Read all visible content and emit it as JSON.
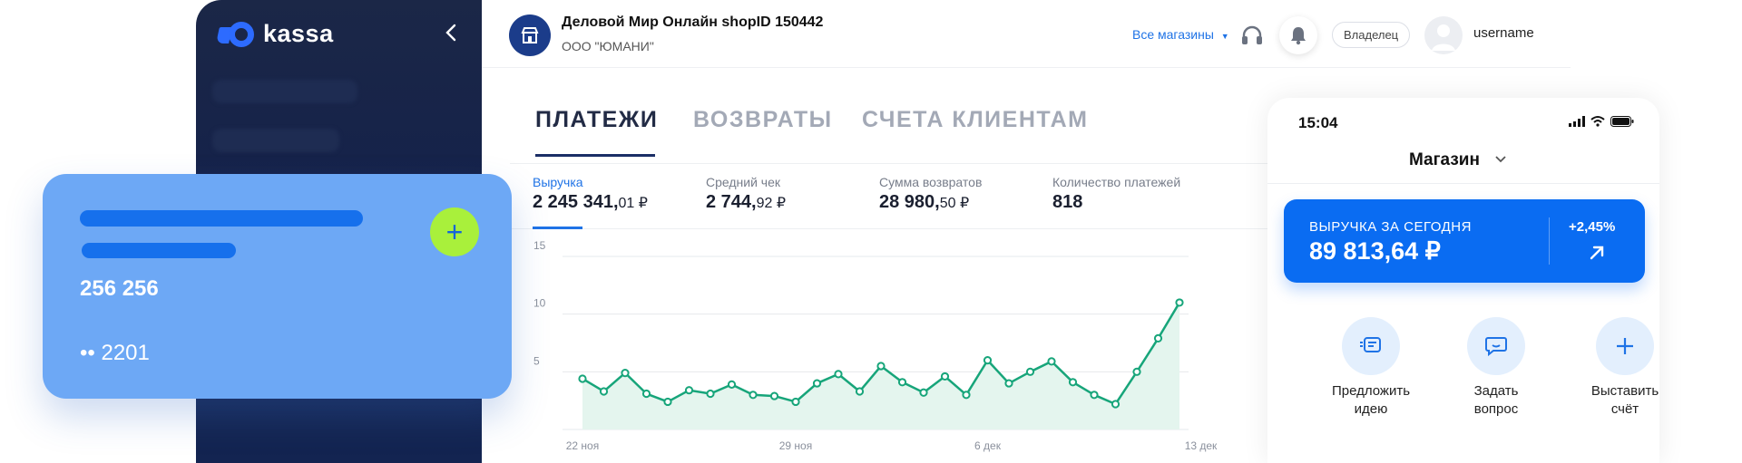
{
  "sidebar": {
    "logo_text": "kassa",
    "colors": {
      "bg": "#15224a",
      "logo": "#2d6bff"
    }
  },
  "header": {
    "shop_title": "Деловой Мир Онлайн shopID 150442",
    "shop_org": "ООО \"ЮМАНИ\"",
    "all_shops": "Все магазины",
    "role": "Владелец",
    "username": "username"
  },
  "tabs": [
    {
      "label": "ПЛАТЕЖИ",
      "active": true
    },
    {
      "label": "ВОЗВРАТЫ",
      "active": false
    },
    {
      "label": "СЧЕТА КЛИЕНТАМ",
      "active": false
    }
  ],
  "metrics": [
    {
      "label": "Выручка",
      "value_main": "2 245 341,",
      "value_small": "01 ₽",
      "active": true
    },
    {
      "label": "Средний чек",
      "value_main": "2 744,",
      "value_small": "92 ₽",
      "active": false
    },
    {
      "label": "Сумма возвратов",
      "value_main": "28 980,",
      "value_small": "50 ₽",
      "active": false
    },
    {
      "label": "Количество платежей",
      "value_main": "818",
      "value_small": "",
      "active": false
    }
  ],
  "chart_data": {
    "type": "area",
    "title": "",
    "ylim": [
      0,
      15
    ],
    "y_ticks": [
      5,
      10,
      15
    ],
    "x_ticks": [
      {
        "label": "22 ноя",
        "index": 0
      },
      {
        "label": "29 ноя",
        "index": 10
      },
      {
        "label": "6 дек",
        "index": 19
      },
      {
        "label": "13 дек",
        "index": 29
      }
    ],
    "series": [
      {
        "values": [
          4.4,
          3.3,
          4.9,
          3.1,
          2.4,
          3.4,
          3.1,
          3.9,
          3.0,
          2.9,
          2.4,
          4.0,
          4.8,
          3.3,
          5.5,
          4.1,
          3.2,
          4.6,
          3.0,
          6.0,
          4.0,
          5.0,
          5.9,
          4.1,
          3.0,
          2.2,
          5.0,
          7.9,
          11.0
        ]
      }
    ],
    "colors": {
      "line": "#17a57a",
      "fill": "#e4f5ee"
    }
  },
  "card": {
    "amount": "256 256",
    "card_number": "•• 2201",
    "colors": {
      "bg": "#6da8f5",
      "accent": "#a9f03b"
    }
  },
  "phone": {
    "time": "15:04",
    "shop_label": "Магазин",
    "revenue_label": "ВЫРУЧКА ЗА СЕГОДНЯ",
    "revenue_value": "89 813,64 ₽",
    "revenue_change": "+2,45%",
    "actions": [
      {
        "label_l1": "Предложить",
        "label_l2": "идею",
        "icon": "idea-icon"
      },
      {
        "label_l1": "Задать",
        "label_l2": "вопрос",
        "icon": "chat-icon"
      },
      {
        "label_l1": "Выставить",
        "label_l2": "счёт",
        "icon": "plus-icon"
      }
    ]
  }
}
